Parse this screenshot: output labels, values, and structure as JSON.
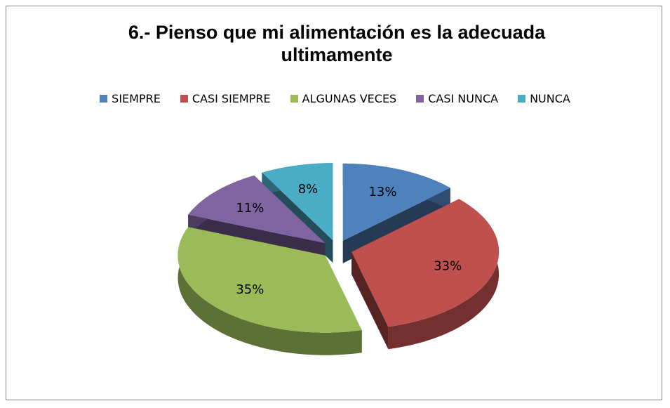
{
  "chart_data": {
    "type": "pie",
    "title": "6.- Pienso que mi alimentación es la adecuada ultimamente",
    "categories": [
      "SIEMPRE",
      "CASI SIEMPRE",
      "ALGUNAS VECES",
      "CASI NUNCA",
      "NUNCA"
    ],
    "values": [
      13,
      33,
      35,
      11,
      8
    ],
    "value_labels": [
      "13%",
      "33%",
      "35%",
      "11%",
      "8%"
    ],
    "colors": [
      "#4f81bd",
      "#c0504d",
      "#9bbb59",
      "#8064a2",
      "#4bacc6"
    ],
    "legend": "top"
  }
}
